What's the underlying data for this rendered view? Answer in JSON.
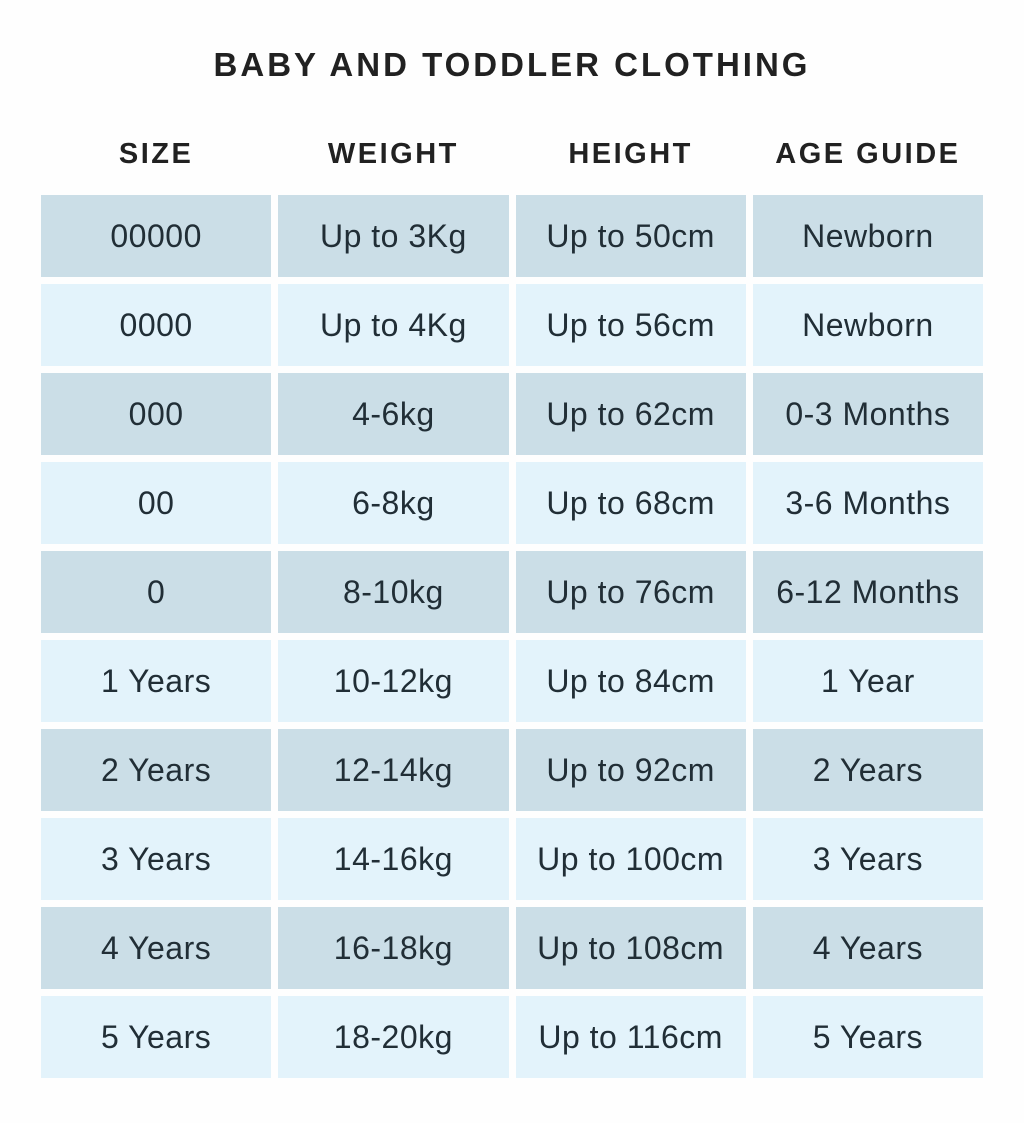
{
  "title": "BABY AND TODDLER CLOTHING",
  "colors": {
    "row_dark": "#cbdee7",
    "row_light": "#e3f3fb",
    "cell_text": "#212e36",
    "heading_text": "#212121",
    "background": "#fefefe"
  },
  "chart_data": {
    "type": "table",
    "title": "BABY AND TODDLER CLOTHING",
    "columns": [
      "SIZE",
      "WEIGHT",
      "HEIGHT",
      "AGE GUIDE"
    ],
    "rows": [
      [
        "00000",
        "Up to 3Kg",
        "Up to 50cm",
        "Newborn"
      ],
      [
        "0000",
        "Up to 4Kg",
        "Up to 56cm",
        "Newborn"
      ],
      [
        "000",
        "4-6kg",
        "Up to 62cm",
        "0-3 Months"
      ],
      [
        "00",
        "6-8kg",
        "Up to 68cm",
        "3-6 Months"
      ],
      [
        "0",
        "8-10kg",
        "Up to 76cm",
        "6-12 Months"
      ],
      [
        "1 Years",
        "10-12kg",
        "Up to 84cm",
        "1 Year"
      ],
      [
        "2 Years",
        "12-14kg",
        "Up to 92cm",
        "2 Years"
      ],
      [
        "3 Years",
        "14-16kg",
        "Up to 100cm",
        "3 Years"
      ],
      [
        "4 Years",
        "16-18kg",
        "Up to 108cm",
        "4 Years"
      ],
      [
        "5 Years",
        "18-20kg",
        "Up to 116cm",
        "5 Years"
      ]
    ],
    "layout": {
      "first_row_shade": "dark",
      "alternating": true
    }
  }
}
